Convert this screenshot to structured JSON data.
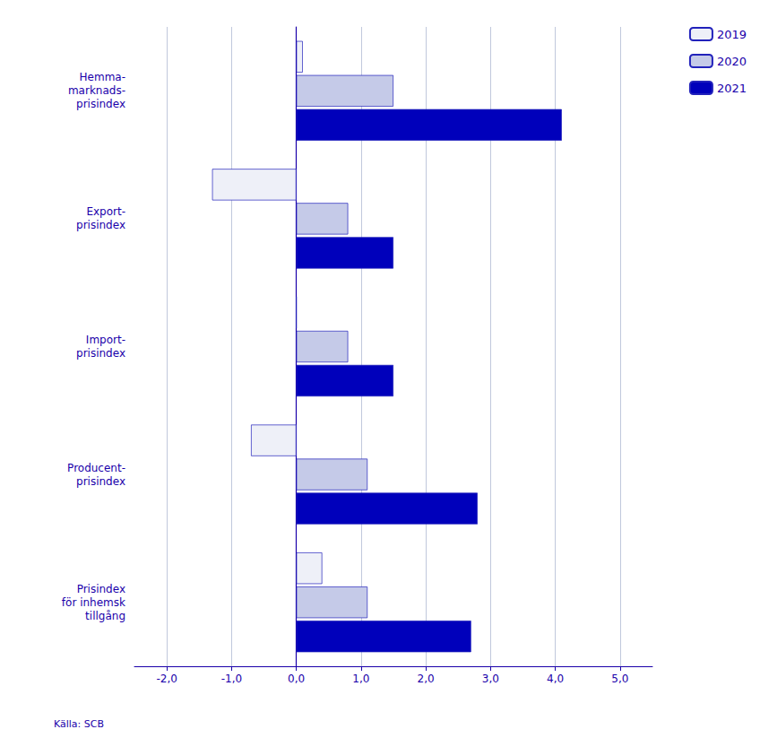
{
  "chart_data": {
    "type": "bar",
    "orientation": "horizontal",
    "categories": [
      "Hemma-\nmarknads-\nprisindex",
      "Export-\nprisindex",
      "Import-\nprisindex",
      "Producent-\nprisindex",
      "Prisindex\nför inhemsk\ntillgång"
    ],
    "series": [
      {
        "name": "2019",
        "color": "#eef0f8",
        "values": [
          0.1,
          -1.3,
          0.0,
          -0.7,
          0.4
        ]
      },
      {
        "name": "2020",
        "color": "#c5cae8",
        "values": [
          1.5,
          0.8,
          0.8,
          1.1,
          1.1
        ]
      },
      {
        "name": "2021",
        "color": "#0000bb",
        "values": [
          4.1,
          1.5,
          1.5,
          2.8,
          2.7
        ]
      }
    ],
    "xlim": [
      -2.5,
      5.5
    ],
    "xticks": [
      {
        "value": -2.0,
        "label": "-2,0"
      },
      {
        "value": -1.0,
        "label": "-1,0"
      },
      {
        "value": 0.0,
        "label": "0,0"
      },
      {
        "value": 1.0,
        "label": "1,0"
      },
      {
        "value": 2.0,
        "label": "2,0"
      },
      {
        "value": 3.0,
        "label": "3,0"
      },
      {
        "value": 4.0,
        "label": "4,0"
      },
      {
        "value": 5.0,
        "label": "5,0"
      }
    ],
    "grid": true,
    "legend": "upper right",
    "annotations": [
      "Källa: SCB"
    ]
  }
}
